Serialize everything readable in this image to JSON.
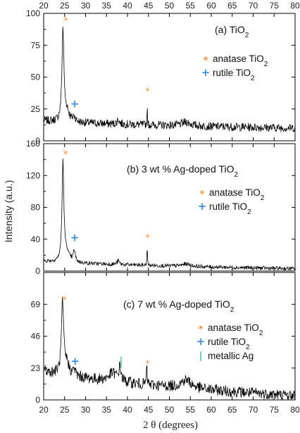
{
  "chart_data": {
    "type": "line",
    "xlabel": "2 θ (degrees)",
    "ylabel": "Intensity (a.u.)",
    "xlim": [
      20,
      80
    ],
    "xticks": [
      20,
      25,
      30,
      35,
      40,
      45,
      50,
      55,
      60,
      65,
      70,
      75,
      80
    ],
    "colors": {
      "line": "#000000",
      "anatase": "#f5913a",
      "rutile": "#3a8ee6",
      "silver": "#6fd3bd"
    },
    "panels": [
      {
        "label_prefix": "(a) TiO",
        "label_sub": "2",
        "ylim": [
          0,
          100
        ],
        "yticks": [
          0,
          25,
          50,
          75,
          100
        ],
        "legend": [
          {
            "marker": "*",
            "kind": "anatase",
            "text": "anatase TiO",
            "sub": "2"
          },
          {
            "marker": "+",
            "kind": "rutile",
            "text": "rutile TiO",
            "sub": "2"
          }
        ],
        "markers": [
          {
            "kind": "anatase",
            "symbol": "*",
            "x": 25.3,
            "y": 96
          },
          {
            "kind": "rutile",
            "symbol": "+",
            "x": 27.4,
            "y": 29
          },
          {
            "kind": "anatase",
            "symbol": "*",
            "x": 44.8,
            "y": 41
          }
        ],
        "baseline": {
          "start": 16,
          "end": 10,
          "noise": 3.2
        },
        "peaks": [
          {
            "x": 24.6,
            "height": 73,
            "width": 0.28
          },
          {
            "x": 25.6,
            "height": 8,
            "width": 0.6
          },
          {
            "x": 27.3,
            "height": 4,
            "width": 0.35
          },
          {
            "x": 37.8,
            "height": 4,
            "width": 0.3
          },
          {
            "x": 44.7,
            "height": 17,
            "width": 0.06
          },
          {
            "x": 54,
            "height": 3,
            "width": 1.2
          }
        ]
      },
      {
        "label_prefix": "(b) 3 wt % Ag-doped TiO",
        "label_sub": "2",
        "ylim": [
          0,
          160
        ],
        "yticks": [
          0,
          40,
          80,
          120,
          160
        ],
        "legend": [
          {
            "marker": "*",
            "kind": "anatase",
            "text": "anatase TiO",
            "sub": "2"
          },
          {
            "marker": "+",
            "kind": "rutile",
            "text": "rutile TiO",
            "sub": "2"
          }
        ],
        "markers": [
          {
            "kind": "anatase",
            "symbol": "*",
            "x": 25.2,
            "y": 150
          },
          {
            "kind": "rutile",
            "symbol": "+",
            "x": 27.4,
            "y": 42
          },
          {
            "kind": "anatase",
            "symbol": "*",
            "x": 44.8,
            "y": 45
          }
        ],
        "baseline": {
          "start": 13,
          "end": 3,
          "noise": 2.4
        },
        "peaks": [
          {
            "x": 24.6,
            "height": 125,
            "width": 0.26
          },
          {
            "x": 25.5,
            "height": 12,
            "width": 0.7
          },
          {
            "x": 27.3,
            "height": 14,
            "width": 0.3
          },
          {
            "x": 37.8,
            "height": 5,
            "width": 0.3
          },
          {
            "x": 44.7,
            "height": 22,
            "width": 0.08
          },
          {
            "x": 54,
            "height": 3,
            "width": 1.2
          }
        ]
      },
      {
        "label_prefix": "(c) 7 wt % Ag-doped TiO",
        "label_sub": "2",
        "ylim": [
          0,
          92
        ],
        "yticks": [
          0,
          23,
          46,
          69
        ],
        "legend": [
          {
            "marker": "*",
            "kind": "anatase",
            "text": "anatase TiO",
            "sub": "2"
          },
          {
            "marker": "+",
            "kind": "rutile",
            "text": "rutile TiO",
            "sub": "2"
          },
          {
            "marker": "|",
            "kind": "silver",
            "text": "metallic Ag",
            "sub": ""
          }
        ],
        "markers": [
          {
            "kind": "anatase",
            "symbol": "*",
            "x": 24.9,
            "y": 74
          },
          {
            "kind": "rutile",
            "symbol": "+",
            "x": 27.5,
            "y": 28
          },
          {
            "kind": "silver",
            "symbol": "|",
            "x": 38.5,
            "y": 27
          },
          {
            "kind": "anatase",
            "symbol": "*",
            "x": 44.8,
            "y": 28
          }
        ],
        "baseline": {
          "start": 22,
          "end": 3,
          "noise": 4
        },
        "peaks": [
          {
            "x": 24.5,
            "height": 50,
            "width": 0.32
          },
          {
            "x": 25.5,
            "height": 8,
            "width": 0.7
          },
          {
            "x": 27.3,
            "height": 5,
            "width": 0.3
          },
          {
            "x": 36.5,
            "height": 6,
            "width": 1.2
          },
          {
            "x": 38.2,
            "height": 10,
            "width": 0.3
          },
          {
            "x": 44.6,
            "height": 12,
            "width": 0.12
          },
          {
            "x": 54,
            "height": 6,
            "width": 1.5
          }
        ]
      }
    ]
  }
}
